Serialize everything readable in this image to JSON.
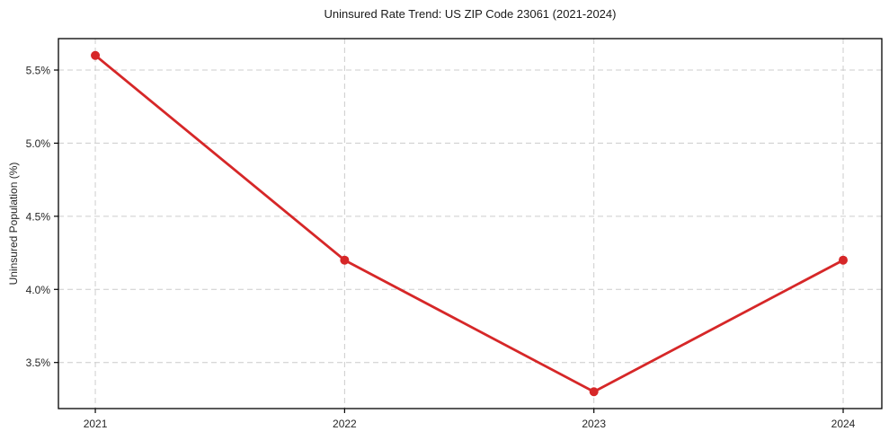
{
  "chart_data": {
    "type": "line",
    "title": "Uninsured Rate Trend: US ZIP Code 23061 (2021-2024)",
    "xlabel": "",
    "ylabel": "Uninsured Population (%)",
    "x": [
      2021,
      2022,
      2023,
      2024
    ],
    "series": [
      {
        "name": "Uninsured Population (%)",
        "values": [
          5.6,
          4.2,
          3.3,
          4.2
        ]
      }
    ],
    "x_ticks": [
      2021,
      2022,
      2023,
      2024
    ],
    "x_tick_labels": [
      "2021",
      "2022",
      "2023",
      "2024"
    ],
    "y_ticks": [
      3.5,
      4.0,
      4.5,
      5.0,
      5.5
    ],
    "y_tick_labels": [
      "3.5%",
      "4.0%",
      "4.5%",
      "5.0%",
      "5.5%"
    ],
    "xlim": [
      2020.852,
      2024.155
    ],
    "ylim": [
      3.185,
      5.715
    ],
    "grid": true,
    "grid_style": "dashed",
    "legend": "none",
    "marker": "circle",
    "colors": {
      "line": "#d62728",
      "marker": "#d62728",
      "grid": "#cccccc",
      "spine": "#000000",
      "tick_text": "#262626",
      "title_text": "#1a1a1a",
      "background": "#ffffff"
    }
  }
}
